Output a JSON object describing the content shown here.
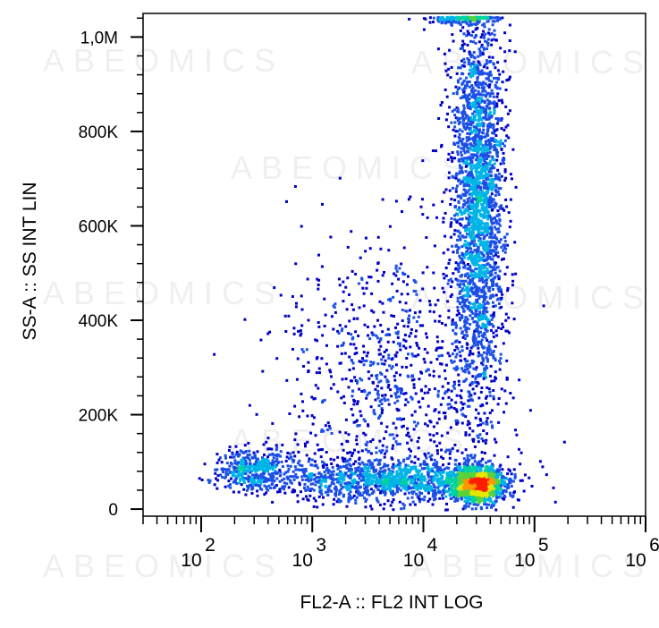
{
  "chart_data": {
    "type": "scatter",
    "title": "",
    "xlabel": "FL2-A :: FL2 INT LOG",
    "ylabel": "SS-A :: SS INT LIN",
    "x_scale": "log",
    "xlim": [
      30,
      1000000
    ],
    "ylim": [
      -15000,
      1050000
    ],
    "y_ticks": [
      {
        "value": 0,
        "label": "0"
      },
      {
        "value": 200000,
        "label": "200K"
      },
      {
        "value": 400000,
        "label": "400K"
      },
      {
        "value": 600000,
        "label": "600K"
      },
      {
        "value": 800000,
        "label": "800K"
      },
      {
        "value": 1000000,
        "label": "1,0M"
      }
    ],
    "x_ticks": [
      {
        "value": 100,
        "base": "10",
        "exp": "2"
      },
      {
        "value": 1000,
        "base": "10",
        "exp": "3"
      },
      {
        "value": 10000,
        "base": "10",
        "exp": "4"
      },
      {
        "value": 100000,
        "base": "10",
        "exp": "5"
      },
      {
        "value": 1000000,
        "base": "10",
        "exp": "6"
      }
    ],
    "grid": false,
    "legend": "none",
    "density_colors": [
      "#0000c8",
      "#1a4ee6",
      "#00b4e6",
      "#00d2a0",
      "#5ad23c",
      "#e6e600",
      "#ff9600",
      "#ff1e00"
    ],
    "populations": [
      {
        "name_hidden": true,
        "x_center": 30000,
        "y_center": 55000,
        "x_log_sd": 0.12,
        "y_sd": 18000,
        "count": 1800
      },
      {
        "name_hidden": true,
        "x_center": 30000,
        "y_center": 650000,
        "x_log_sd": 0.12,
        "y_sd": 220000,
        "count": 2600
      },
      {
        "name_hidden": true,
        "x_center": 300,
        "y_center": 85000,
        "x_log_sd": 0.18,
        "y_sd": 22000,
        "count": 450
      },
      {
        "name_hidden": true,
        "x_center": 4000,
        "y_center": 65000,
        "x_log_sd": 0.45,
        "y_sd": 22000,
        "count": 1100
      },
      {
        "name_hidden": true,
        "x_center": 5000,
        "y_center": 280000,
        "x_log_sd": 0.5,
        "y_sd": 160000,
        "count": 900
      },
      {
        "name_hidden": true,
        "x_center": 20000,
        "y_center": 1040000,
        "x_log_sd": 0.15,
        "y_sd": 6000,
        "count": 120
      }
    ]
  },
  "watermark": {
    "text": "ABEOMICS"
  }
}
